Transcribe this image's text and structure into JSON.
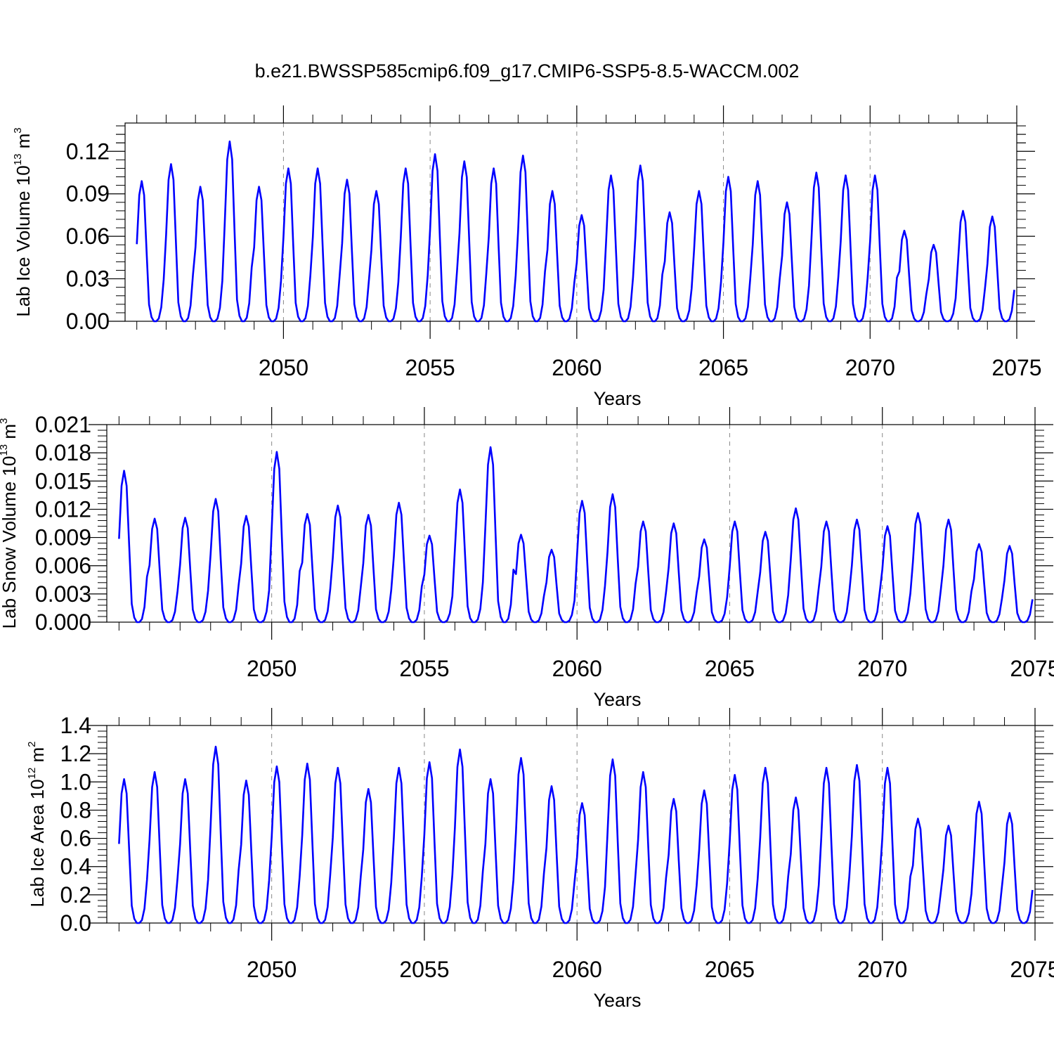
{
  "title": "b.e21.BWSSP585cmip6.f09_g17.CMIP6-SSP5-8.5-WACCM.002",
  "colors": {
    "line": "#0000ff",
    "axis": "#000000",
    "grid": "#888888"
  },
  "chart_data": [
    {
      "type": "line",
      "ylabel": {
        "text": "Lab Ice Volume 10",
        "exp": "13",
        "unit": " m",
        "unit_exp": "3"
      },
      "xlabel": "Years",
      "xlim": [
        2044.6,
        2075
      ],
      "ylim": [
        0,
        0.14
      ],
      "xticks": [
        2050,
        2055,
        2060,
        2065,
        2070,
        2075
      ],
      "xtick_labels": [
        "2050",
        "2055",
        "2060",
        "2065",
        "2070",
        "2075"
      ],
      "yticks": [
        0,
        0.03,
        0.06,
        0.09,
        0.12
      ],
      "ytick_labels": [
        "0.00",
        "0.03",
        "0.06",
        "0.09",
        "0.12"
      ],
      "grid": "vertical dashed at major x ticks",
      "series": [
        {
          "start_year": 2045,
          "peaks": [
            0.099,
            0.111,
            0.095,
            0.127,
            0.095,
            0.108,
            0.108,
            0.1,
            0.092,
            0.108,
            0.118,
            0.113,
            0.108,
            0.117,
            0.092,
            0.075,
            0.103,
            0.11,
            0.077,
            0.092,
            0.102,
            0.099,
            0.084,
            0.105,
            0.103,
            0.103,
            0.064,
            0.054,
            0.078,
            0.074
          ]
        }
      ]
    },
    {
      "type": "line",
      "ylabel": {
        "text": "Lab Snow Volume 10",
        "exp": "13",
        "unit": " m",
        "unit_exp": "3"
      },
      "xlabel": "Years",
      "xlim": [
        2044.6,
        2075
      ],
      "ylim": [
        0,
        0.021
      ],
      "xticks": [
        2050,
        2055,
        2060,
        2065,
        2070,
        2075
      ],
      "xtick_labels": [
        "2050",
        "2055",
        "2060",
        "2065",
        "2070",
        "2075"
      ],
      "yticks": [
        0,
        0.003,
        0.006,
        0.009,
        0.012,
        0.015,
        0.018,
        0.021
      ],
      "ytick_labels": [
        "0.000",
        "0.003",
        "0.006",
        "0.009",
        "0.012",
        "0.015",
        "0.018",
        "0.021"
      ],
      "grid": "vertical dashed at major x ticks",
      "series": [
        {
          "start_year": 2045,
          "peaks": [
            0.0161,
            0.011,
            0.0111,
            0.0131,
            0.0113,
            0.0181,
            0.0115,
            0.0124,
            0.0114,
            0.0127,
            0.0092,
            0.0141,
            0.0186,
            0.0093,
            0.0077,
            0.0129,
            0.0136,
            0.0107,
            0.0105,
            0.0088,
            0.0107,
            0.0096,
            0.0121,
            0.0107,
            0.0109,
            0.0102,
            0.0116,
            0.0109,
            0.0083,
            0.0081
          ]
        }
      ]
    },
    {
      "type": "line",
      "ylabel": {
        "text": "Lab Ice Area 10",
        "exp": "12",
        "unit": " m",
        "unit_exp": "2"
      },
      "xlabel": "Years",
      "xlim": [
        2044.6,
        2075
      ],
      "ylim": [
        0,
        1.4
      ],
      "xticks": [
        2050,
        2055,
        2060,
        2065,
        2070,
        2075
      ],
      "xtick_labels": [
        "2050",
        "2055",
        "2060",
        "2065",
        "2070",
        "2075"
      ],
      "yticks": [
        0,
        0.2,
        0.4,
        0.6,
        0.8,
        1.0,
        1.2,
        1.4
      ],
      "ytick_labels": [
        "0.0",
        "0.2",
        "0.4",
        "0.6",
        "0.8",
        "1.0",
        "1.2",
        "1.4"
      ],
      "grid": "vertical dashed at major x ticks",
      "series": [
        {
          "start_year": 2045,
          "peaks": [
            1.02,
            1.07,
            1.02,
            1.25,
            1.01,
            1.11,
            1.13,
            1.1,
            0.95,
            1.1,
            1.14,
            1.23,
            1.02,
            1.17,
            0.97,
            0.85,
            1.16,
            1.07,
            0.88,
            0.94,
            1.05,
            1.1,
            0.89,
            1.1,
            1.12,
            1.1,
            0.74,
            0.69,
            0.86,
            0.78
          ]
        }
      ]
    }
  ]
}
